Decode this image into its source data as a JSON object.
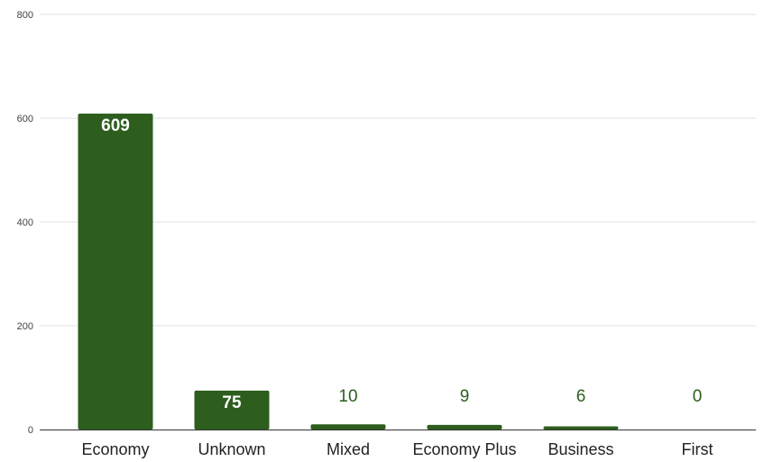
{
  "chart_data": {
    "type": "bar",
    "categories": [
      "Economy",
      "Unknown",
      "Mixed",
      "Economy Plus",
      "Business",
      "First"
    ],
    "values": [
      609,
      75,
      10,
      9,
      6,
      0
    ],
    "data_labels": [
      "609",
      "75",
      "10",
      "9",
      "6",
      "0"
    ],
    "y_ticks": [
      "0",
      "200",
      "400",
      "600",
      "800"
    ],
    "ylim": [
      0,
      800
    ],
    "grid": true,
    "legend": "none",
    "colors": {
      "bar": "#2d5e1e",
      "grid": "#e2e2e2",
      "axis": "#333333",
      "label_outside": "#2d5e1e"
    }
  }
}
